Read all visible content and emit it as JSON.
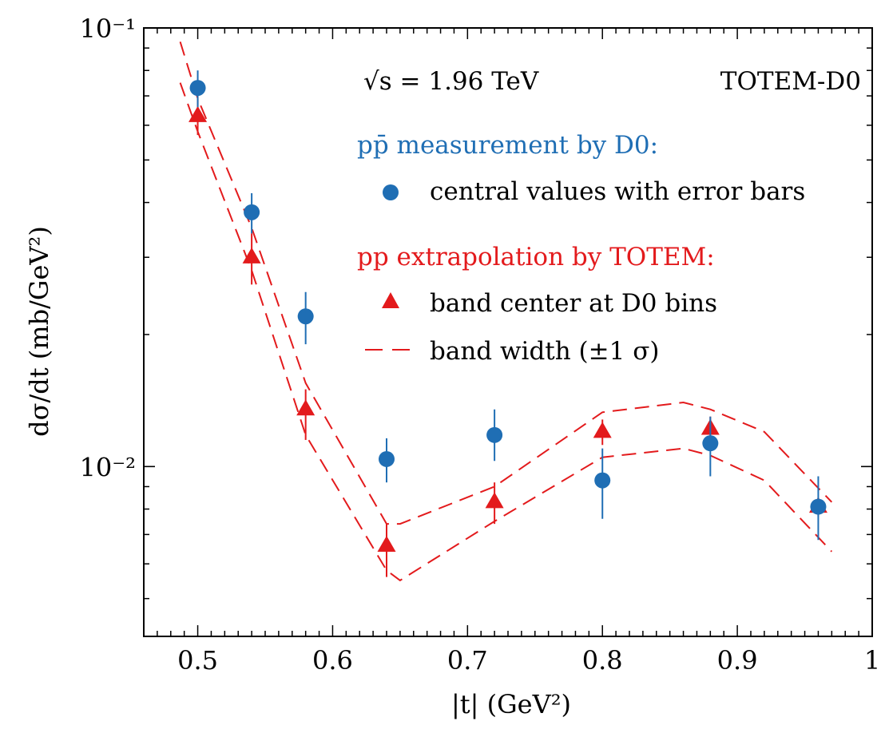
{
  "chart_data": {
    "type": "scatter",
    "xlabel": "|t|   (GeV²)",
    "ylabel": "dσ/dt   (mb/GeV²)",
    "xlim": [
      0.46,
      1.0
    ],
    "ylim": [
      0.0041,
      0.1
    ],
    "yscale": "log",
    "x_ticks": [
      {
        "value": 0.5,
        "label": "0.5"
      },
      {
        "value": 0.6,
        "label": "0.6"
      },
      {
        "value": 0.7,
        "label": "0.7"
      },
      {
        "value": 0.8,
        "label": "0.8"
      },
      {
        "value": 0.9,
        "label": "0.9"
      },
      {
        "value": 1.0,
        "label": "1"
      }
    ],
    "y_ticks": [
      {
        "value": 0.1,
        "label": "10⁻¹"
      },
      {
        "value": 0.01,
        "label": "10⁻²"
      }
    ],
    "grid": false,
    "annotations": {
      "energy": "√s = 1.96 TeV",
      "experiment": "TOTEM-D0"
    },
    "legend": {
      "position": "top-right",
      "d0_header": "pp̄ measurement by D0:",
      "d0_marker_label": "central values with error bars",
      "totem_header": "pp extrapolation by TOTEM:",
      "totem_marker_label": "band center at D0 bins",
      "band_label": "band width (±1 σ)"
    },
    "series": [
      {
        "name": "central values with error bars",
        "color": "#1f6eb4",
        "marker": "circle",
        "x": [
          0.5,
          0.54,
          0.58,
          0.64,
          0.72,
          0.8,
          0.88,
          0.96
        ],
        "y": [
          0.073,
          0.038,
          0.022,
          0.0104,
          0.0118,
          0.0093,
          0.0113,
          0.0081
        ],
        "err_low": [
          0.066,
          0.034,
          0.019,
          0.0092,
          0.0103,
          0.0076,
          0.0095,
          0.0068
        ],
        "err_high": [
          0.08,
          0.042,
          0.025,
          0.0116,
          0.0135,
          0.011,
          0.013,
          0.0095
        ]
      },
      {
        "name": "band center at D0 bins",
        "color": "#e31a1c",
        "marker": "triangle",
        "x": [
          0.5,
          0.54,
          0.58,
          0.64,
          0.72,
          0.8,
          0.88,
          0.96
        ],
        "y": [
          0.063,
          0.03,
          0.0135,
          0.0066,
          0.0083,
          0.012,
          0.0122,
          0.0081
        ],
        "err_low": [
          0.057,
          0.026,
          0.0115,
          0.0056,
          0.0074,
          0.0112,
          0.0116,
          0.0077
        ],
        "err_high": [
          0.069,
          0.034,
          0.015,
          0.0074,
          0.0092,
          0.0128,
          0.013,
          0.0085
        ]
      },
      {
        "name": "band width (±1 σ)",
        "color": "#e31a1c",
        "style": "dashed",
        "upper": {
          "x": [
            0.487,
            0.5,
            0.54,
            0.58,
            0.64,
            0.65,
            0.72,
            0.8,
            0.86,
            0.88,
            0.92,
            0.97
          ],
          "y": [
            0.093,
            0.069,
            0.035,
            0.0155,
            0.0074,
            0.0074,
            0.009,
            0.0133,
            0.014,
            0.0135,
            0.012,
            0.0083
          ]
        },
        "lower": {
          "x": [
            0.487,
            0.5,
            0.54,
            0.58,
            0.64,
            0.65,
            0.72,
            0.8,
            0.86,
            0.88,
            0.92,
            0.97
          ],
          "y": [
            0.075,
            0.058,
            0.028,
            0.0118,
            0.0058,
            0.0055,
            0.0075,
            0.0105,
            0.011,
            0.0106,
            0.0093,
            0.0064
          ]
        }
      }
    ]
  }
}
